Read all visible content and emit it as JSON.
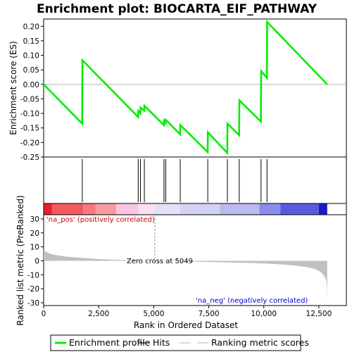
{
  "chart_data": {
    "type": "line",
    "title": "Enrichment plot: BIOCARTA_EIF_PATHWAY",
    "top_panel": {
      "ylabel": "Enrichment score (ES)",
      "ylim": [
        -0.25,
        0.225
      ],
      "yticks": [
        0.2,
        0.15,
        0.1,
        0.05,
        0.0,
        -0.05,
        -0.1,
        -0.15,
        -0.2,
        -0.25
      ],
      "ytick_labels": [
        "0.20",
        "0.15",
        "0.10",
        "0.05",
        "0.00",
        "-0.05",
        "-0.10",
        "-0.15",
        "-0.20",
        "-0.25"
      ],
      "series": [
        {
          "name": "Enrichment profile",
          "color": "#00ee00",
          "x": [
            0,
            1750,
            1760,
            4290,
            4300,
            4390,
            4400,
            4570,
            4580,
            5460,
            5470,
            5540,
            5550,
            6200,
            6210,
            7450,
            7460,
            8340,
            8350,
            8880,
            8890,
            9870,
            9880,
            10140,
            10150,
            12880
          ],
          "y": [
            0.0,
            -0.135,
            0.083,
            -0.112,
            -0.092,
            -0.1,
            -0.08,
            -0.09,
            -0.074,
            -0.14,
            -0.125,
            -0.133,
            -0.122,
            -0.172,
            -0.14,
            -0.233,
            -0.165,
            -0.236,
            -0.135,
            -0.175,
            -0.055,
            -0.128,
            0.046,
            0.022,
            0.215,
            0.0
          ]
        }
      ]
    },
    "hits": {
      "name": "Hits",
      "color": "#000000",
      "positions": [
        1755,
        4295,
        4395,
        4575,
        5465,
        5545,
        6205,
        7455,
        8345,
        8885,
        9875,
        10145
      ]
    },
    "heatmap": {
      "segments": [
        {
          "x0": 0,
          "x1": 380,
          "color": "#e8202a"
        },
        {
          "x0": 380,
          "x1": 1800,
          "color": "#f25a5e"
        },
        {
          "x0": 1800,
          "x1": 2350,
          "color": "#f57a80"
        },
        {
          "x0": 2350,
          "x1": 3300,
          "color": "#f89aa0"
        },
        {
          "x0": 3300,
          "x1": 4300,
          "color": "#fbc6e2"
        },
        {
          "x0": 4300,
          "x1": 5049,
          "color": "#fbe0f0"
        },
        {
          "x0": 5049,
          "x1": 6200,
          "color": "#e2e2f6"
        },
        {
          "x0": 6200,
          "x1": 8000,
          "color": "#d2d2f4"
        },
        {
          "x0": 8000,
          "x1": 9800,
          "color": "#babaf0"
        },
        {
          "x0": 9800,
          "x1": 10750,
          "color": "#8c8cec"
        },
        {
          "x0": 10750,
          "x1": 12500,
          "color": "#5a5ae0"
        },
        {
          "x0": 12500,
          "x1": 12880,
          "color": "#1a1ac6"
        }
      ]
    },
    "bottom_panel": {
      "ylabel": "Ranked list metric (PreRanked)",
      "xlabel": "Rank in Ordered Dataset",
      "ylim": [
        -32,
        33
      ],
      "yticks": [
        30,
        20,
        10,
        0,
        -10,
        -20,
        -30
      ],
      "ytick_labels": [
        "30",
        "20",
        "10",
        "0",
        "-10",
        "-20",
        "-30"
      ],
      "metric_curve": {
        "name": "Ranking metric scores",
        "color": "#c0c0c0",
        "x": [
          0,
          100,
          300,
          600,
          1000,
          1500,
          2000,
          2500,
          3000,
          3500,
          4000,
          4500,
          5049,
          5500,
          6500,
          7500,
          8500,
          9500,
          10000,
          10500,
          11000,
          11500,
          12000,
          12300,
          12500,
          12650,
          12750,
          12820,
          12860,
          12880
        ],
        "y": [
          8.2,
          6.5,
          5.0,
          4.0,
          3.1,
          2.4,
          1.8,
          1.3,
          0.9,
          0.6,
          0.35,
          0.15,
          0.0,
          -0.2,
          -0.5,
          -0.8,
          -1.2,
          -1.6,
          -1.9,
          -2.3,
          -2.8,
          -3.5,
          -4.6,
          -5.8,
          -7.2,
          -9.0,
          -11.0,
          -13.5,
          -17.0,
          -29.5
        ]
      },
      "annotations": {
        "pos_label": "'na_pos' (positively correlated)",
        "zero_cross": "Zero cross at 5049",
        "neg_label": "'na_neg' (negatively correlated)",
        "zero_cross_x": 5049
      }
    },
    "xlim": [
      0,
      13750
    ],
    "xticks": [
      0,
      2500,
      5000,
      7500,
      10000,
      12500
    ],
    "xtick_labels": [
      "0",
      "2,500",
      "5,000",
      "7,500",
      "10,000",
      "12,500"
    ],
    "legend": {
      "placement": "bottom",
      "items": [
        {
          "label": "Enrichment profile",
          "color": "#00ee00",
          "kind": "thick-line"
        },
        {
          "label": "Hits",
          "color": "#000000",
          "kind": "thin-line"
        },
        {
          "label": "",
          "color": "#c0c0c0",
          "kind": "thin-line"
        },
        {
          "label": "Ranking metric scores",
          "color": "#c0c0c0",
          "kind": "thin-line"
        }
      ]
    },
    "colors": {
      "pos_label": "#cc0000",
      "neg_label": "#0000cc",
      "axis": "#000000"
    }
  }
}
